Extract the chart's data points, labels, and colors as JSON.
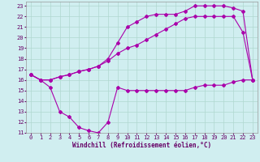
{
  "xlabel": "Windchill (Refroidissement éolien,°C)",
  "xlim": [
    -0.5,
    23.5
  ],
  "ylim": [
    11,
    23.4
  ],
  "xticks": [
    0,
    1,
    2,
    3,
    4,
    5,
    6,
    7,
    8,
    9,
    10,
    11,
    12,
    13,
    14,
    15,
    16,
    17,
    18,
    19,
    20,
    21,
    22,
    23
  ],
  "yticks": [
    11,
    12,
    13,
    14,
    15,
    16,
    17,
    18,
    19,
    20,
    21,
    22,
    23
  ],
  "background_color": "#d0eef0",
  "plot_bg": "#d0eef0",
  "line_color": "#aa00aa",
  "grid_color": "#b0d8d0",
  "curve1_x": [
    0,
    1,
    2,
    3,
    4,
    5,
    6,
    7,
    8,
    9,
    10,
    11,
    12,
    13,
    14,
    15,
    16,
    17,
    18,
    19,
    20,
    21,
    22,
    23
  ],
  "curve1_y": [
    16.5,
    16.0,
    15.3,
    13.0,
    12.5,
    11.5,
    11.2,
    11.0,
    12.0,
    15.3,
    15.0,
    15.0,
    15.0,
    15.0,
    15.0,
    15.0,
    15.0,
    15.3,
    15.5,
    15.5,
    15.5,
    15.8,
    16.0,
    16.0
  ],
  "curve2_x": [
    0,
    1,
    2,
    3,
    4,
    5,
    6,
    7,
    8,
    9,
    10,
    11,
    12,
    13,
    14,
    15,
    16,
    17,
    18,
    19,
    20,
    21,
    22,
    23
  ],
  "curve2_y": [
    16.5,
    16.0,
    16.0,
    16.3,
    16.5,
    16.8,
    17.0,
    17.3,
    17.8,
    18.5,
    19.0,
    19.3,
    19.8,
    20.3,
    20.8,
    21.3,
    21.8,
    22.0,
    22.0,
    22.0,
    22.0,
    22.0,
    20.5,
    16.0
  ],
  "curve3_x": [
    0,
    1,
    2,
    3,
    4,
    5,
    6,
    7,
    8,
    9,
    10,
    11,
    12,
    13,
    14,
    15,
    16,
    17,
    18,
    19,
    20,
    21,
    22,
    23
  ],
  "curve3_y": [
    16.5,
    16.0,
    16.0,
    16.3,
    16.5,
    16.8,
    17.0,
    17.3,
    18.0,
    19.5,
    21.0,
    21.5,
    22.0,
    22.2,
    22.2,
    22.2,
    22.5,
    23.0,
    23.0,
    23.0,
    23.0,
    22.8,
    22.5,
    16.0
  ],
  "xlabel_color": "#660066",
  "tick_color": "#660066",
  "tick_fontsize": 5,
  "xlabel_fontsize": 5.5
}
